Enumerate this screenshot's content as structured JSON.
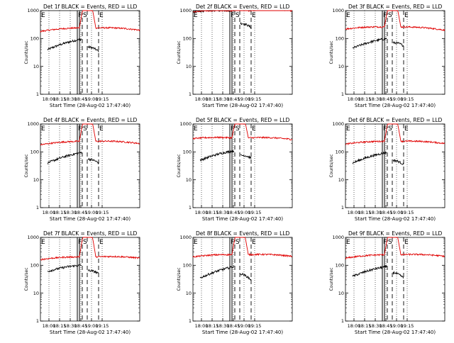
{
  "chart_data": [
    {
      "type": "line",
      "panel_id": 1,
      "title": "Det 1f BLACK = Events, RED = LLD",
      "xlabel": "Start Time (28-Aug-02 17:47:40)",
      "ylabel": "Counts/sec",
      "x_tick_labels": [
        "18:00",
        "18:15",
        "18:30",
        "18:45",
        "19:00",
        "19:15"
      ],
      "y_tick_labels": [
        "1",
        "10",
        "100",
        "1000"
      ],
      "ylim": [
        1,
        1000
      ],
      "scale": "log",
      "markers": [
        "E",
        "F",
        "S",
        "E"
      ],
      "series": [
        {
          "name": "Events",
          "color": "#000000",
          "segments": [
            {
              "start_min": 10,
              "end_min": 58,
              "start_val": 40,
              "end_val": 95,
              "hump": 1.2
            },
            {
              "start_min": 67,
              "end_min": 82,
              "start_val": 50,
              "end_val": 35,
              "hump": 1.0
            }
          ]
        },
        {
          "name": "LLD",
          "color": "#e00000",
          "segments": [
            {
              "start_min": 0,
              "end_min": 55,
              "start_val": 180,
              "end_val": 240,
              "hump": 0.8
            },
            {
              "start_min": 55,
              "end_min": 78,
              "start_val": 240,
              "end_val": 240,
              "rise": true
            },
            {
              "start_min": 78,
              "end_min": 140,
              "start_val": 240,
              "end_val": 200,
              "hump": 1.0
            }
          ]
        }
      ]
    },
    {
      "type": "line",
      "panel_id": 2,
      "title": "Det 2f BLACK = Events, RED = LLD",
      "xlabel": "Start Time (28-Aug-02 17:47:40)",
      "ylabel": "Counts/sec",
      "x_tick_labels": [
        "18:00",
        "18:15",
        "18:30",
        "18:45",
        "19:00",
        "19:15"
      ],
      "y_tick_labels": [
        "1",
        "10",
        "100",
        "1000"
      ],
      "ylim": [
        1,
        1000
      ],
      "scale": "log",
      "markers": [
        "E",
        "F",
        "S",
        "E"
      ],
      "series": [
        {
          "name": "Events",
          "color": "#000000",
          "segments": [
            {
              "start_min": 0,
              "end_min": 58,
              "start_val": 900,
              "end_val": 1000,
              "hump": 1.0
            },
            {
              "start_min": 67,
              "end_min": 82,
              "start_val": 350,
              "end_val": 250,
              "hump": 1.0
            }
          ]
        },
        {
          "name": "LLD",
          "color": "#e00000",
          "segments": [
            {
              "start_min": 0,
              "end_min": 55,
              "start_val": 900,
              "end_val": 1000,
              "hump": 0.8
            },
            {
              "start_min": 55,
              "end_min": 78,
              "start_val": 1000,
              "end_val": 1000,
              "rise": true
            },
            {
              "start_min": 78,
              "end_min": 140,
              "start_val": 1000,
              "end_val": 1000,
              "hump": 1.0
            }
          ]
        }
      ]
    },
    {
      "type": "line",
      "panel_id": 3,
      "title": "Det 3f BLACK = Events, RED = LLD",
      "xlabel": "Start Time (28-Aug-02 17:47:40)",
      "ylabel": "Counts/sec",
      "x_tick_labels": [
        "18:00",
        "18:15",
        "18:30",
        "18:45",
        "19:00",
        "19:15"
      ],
      "y_tick_labels": [
        "1",
        "10",
        "100",
        "1000"
      ],
      "ylim": [
        1,
        1000
      ],
      "scale": "log",
      "markers": [
        "E",
        "F",
        "S",
        "E"
      ],
      "series": [
        {
          "name": "Events",
          "color": "#000000",
          "segments": [
            {
              "start_min": 10,
              "end_min": 58,
              "start_val": 45,
              "end_val": 100,
              "hump": 1.2
            },
            {
              "start_min": 67,
              "end_min": 82,
              "start_val": 70,
              "end_val": 55,
              "hump": 1.0
            }
          ]
        },
        {
          "name": "LLD",
          "color": "#e00000",
          "segments": [
            {
              "start_min": 0,
              "end_min": 55,
              "start_val": 220,
              "end_val": 260,
              "hump": 0.8
            },
            {
              "start_min": 55,
              "end_min": 78,
              "start_val": 260,
              "end_val": 260,
              "rise": true
            },
            {
              "start_min": 78,
              "end_min": 140,
              "start_val": 260,
              "end_val": 200,
              "hump": 1.0
            }
          ]
        }
      ]
    },
    {
      "type": "line",
      "panel_id": 4,
      "title": "Det 4f BLACK = Events, RED = LLD",
      "xlabel": "Start Time (28-Aug-02 17:47:40)",
      "ylabel": "Counts/sec",
      "x_tick_labels": [
        "18:00",
        "18:15",
        "18:30",
        "18:45",
        "19:00",
        "19:15"
      ],
      "y_tick_labels": [
        "1",
        "10",
        "100",
        "1000"
      ],
      "ylim": [
        1,
        1000
      ],
      "scale": "log",
      "markers": [
        "E",
        "F",
        "S",
        "E"
      ],
      "series": [
        {
          "name": "Events",
          "color": "#000000",
          "segments": [
            {
              "start_min": 10,
              "end_min": 58,
              "start_val": 40,
              "end_val": 95,
              "hump": 1.2
            },
            {
              "start_min": 67,
              "end_min": 82,
              "start_val": 55,
              "end_val": 40,
              "hump": 1.0
            }
          ]
        },
        {
          "name": "LLD",
          "color": "#e00000",
          "segments": [
            {
              "start_min": 0,
              "end_min": 55,
              "start_val": 180,
              "end_val": 240,
              "hump": 0.8
            },
            {
              "start_min": 55,
              "end_min": 78,
              "start_val": 240,
              "end_val": 240,
              "rise": true
            },
            {
              "start_min": 78,
              "end_min": 140,
              "start_val": 240,
              "end_val": 200,
              "hump": 1.0
            }
          ]
        }
      ]
    },
    {
      "type": "line",
      "panel_id": 5,
      "title": "Det 5f BLACK = Events, RED = LLD",
      "xlabel": "Start Time (28-Aug-02 17:47:40)",
      "ylabel": "Counts/sec",
      "x_tick_labels": [
        "18:00",
        "18:15",
        "18:30",
        "18:45",
        "19:00",
        "19:15"
      ],
      "y_tick_labels": [
        "1",
        "10",
        "100",
        "1000"
      ],
      "ylim": [
        1,
        1000
      ],
      "scale": "log",
      "markers": [
        "E",
        "F",
        "S",
        "E"
      ],
      "series": [
        {
          "name": "Events",
          "color": "#000000",
          "segments": [
            {
              "start_min": 10,
              "end_min": 58,
              "start_val": 50,
              "end_val": 110,
              "hump": 1.2
            },
            {
              "start_min": 67,
              "end_min": 82,
              "start_val": 75,
              "end_val": 60,
              "hump": 1.0
            }
          ]
        },
        {
          "name": "LLD",
          "color": "#e00000",
          "segments": [
            {
              "start_min": 0,
              "end_min": 55,
              "start_val": 300,
              "end_val": 320,
              "hump": 0.8
            },
            {
              "start_min": 55,
              "end_min": 78,
              "start_val": 320,
              "end_val": 320,
              "rise": true
            },
            {
              "start_min": 78,
              "end_min": 140,
              "start_val": 320,
              "end_val": 280,
              "hump": 1.0
            }
          ]
        }
      ]
    },
    {
      "type": "line",
      "panel_id": 6,
      "title": "Det 6f BLACK = Events, RED = LLD",
      "xlabel": "Start Time (28-Aug-02 17:47:40)",
      "ylabel": "Counts/sec",
      "x_tick_labels": [
        "18:00",
        "18:15",
        "18:30",
        "18:45",
        "19:00",
        "19:15"
      ],
      "y_tick_labels": [
        "1",
        "10",
        "100",
        "1000"
      ],
      "ylim": [
        1,
        1000
      ],
      "scale": "log",
      "markers": [
        "E",
        "F",
        "S",
        "E"
      ],
      "series": [
        {
          "name": "Events",
          "color": "#000000",
          "segments": [
            {
              "start_min": 10,
              "end_min": 58,
              "start_val": 40,
              "end_val": 95,
              "hump": 1.2
            },
            {
              "start_min": 67,
              "end_min": 82,
              "start_val": 50,
              "end_val": 35,
              "hump": 1.0
            }
          ]
        },
        {
          "name": "LLD",
          "color": "#e00000",
          "segments": [
            {
              "start_min": 0,
              "end_min": 55,
              "start_val": 190,
              "end_val": 240,
              "hump": 0.8
            },
            {
              "start_min": 55,
              "end_min": 78,
              "start_val": 240,
              "end_val": 240,
              "rise": true
            },
            {
              "start_min": 78,
              "end_min": 140,
              "start_val": 240,
              "end_val": 200,
              "hump": 1.0
            }
          ]
        }
      ]
    },
    {
      "type": "line",
      "panel_id": 7,
      "title": "Det 7f BLACK = Events, RED = LLD",
      "xlabel": "Start Time (28-Aug-02 17:47:40)",
      "ylabel": "Counts/sec",
      "x_tick_labels": [
        "18:00",
        "18:15",
        "18:30",
        "18:45",
        "19:00",
        "19:15"
      ],
      "y_tick_labels": [
        "1",
        "10",
        "100",
        "1000"
      ],
      "ylim": [
        1,
        1000
      ],
      "scale": "log",
      "markers": [
        "E",
        "F",
        "S",
        "E"
      ],
      "series": [
        {
          "name": "Events",
          "color": "#000000",
          "segments": [
            {
              "start_min": 10,
              "end_min": 58,
              "start_val": 60,
              "end_val": 100,
              "hump": 1.2
            },
            {
              "start_min": 67,
              "end_min": 82,
              "start_val": 65,
              "end_val": 50,
              "hump": 1.0
            }
          ]
        },
        {
          "name": "LLD",
          "color": "#e00000",
          "segments": [
            {
              "start_min": 0,
              "end_min": 55,
              "start_val": 160,
              "end_val": 200,
              "hump": 0.8
            },
            {
              "start_min": 55,
              "end_min": 78,
              "start_val": 200,
              "end_val": 200,
              "rise": true
            },
            {
              "start_min": 78,
              "end_min": 140,
              "start_val": 200,
              "end_val": 180,
              "hump": 1.0
            }
          ]
        }
      ]
    },
    {
      "type": "line",
      "panel_id": 8,
      "title": "Det 8f BLACK = Events, RED = LLD",
      "xlabel": "Start Time (28-Aug-02 17:47:40)",
      "ylabel": "Counts/sec",
      "x_tick_labels": [
        "18:00",
        "18:15",
        "18:30",
        "18:45",
        "19:00",
        "19:15"
      ],
      "y_tick_labels": [
        "1",
        "10",
        "100",
        "1000"
      ],
      "ylim": [
        1,
        1000
      ],
      "scale": "log",
      "markers": [
        "E",
        "F",
        "S",
        "E"
      ],
      "series": [
        {
          "name": "Events",
          "color": "#000000",
          "segments": [
            {
              "start_min": 10,
              "end_min": 58,
              "start_val": 35,
              "end_val": 90,
              "hump": 1.2
            },
            {
              "start_min": 67,
              "end_min": 82,
              "start_val": 50,
              "end_val": 30,
              "hump": 1.0
            }
          ]
        },
        {
          "name": "LLD",
          "color": "#e00000",
          "segments": [
            {
              "start_min": 0,
              "end_min": 55,
              "start_val": 200,
              "end_val": 240,
              "hump": 0.8
            },
            {
              "start_min": 55,
              "end_min": 78,
              "start_val": 240,
              "end_val": 240,
              "rise": true
            },
            {
              "start_min": 78,
              "end_min": 140,
              "start_val": 240,
              "end_val": 210,
              "hump": 1.0
            }
          ]
        }
      ]
    },
    {
      "type": "line",
      "panel_id": 9,
      "title": "Det 9f BLACK = Events, RED = LLD",
      "xlabel": "Start Time (28-Aug-02 17:47:40)",
      "ylabel": "Counts/sec",
      "x_tick_labels": [
        "18:00",
        "18:15",
        "18:30",
        "18:45",
        "19:00",
        "19:15"
      ],
      "y_tick_labels": [
        "1",
        "10",
        "100",
        "1000"
      ],
      "ylim": [
        1,
        1000
      ],
      "scale": "log",
      "markers": [
        "E",
        "F",
        "S",
        "E"
      ],
      "series": [
        {
          "name": "Events",
          "color": "#000000",
          "segments": [
            {
              "start_min": 10,
              "end_min": 58,
              "start_val": 40,
              "end_val": 90,
              "hump": 1.2
            },
            {
              "start_min": 67,
              "end_min": 82,
              "start_val": 55,
              "end_val": 35,
              "hump": 1.0
            }
          ]
        },
        {
          "name": "LLD",
          "color": "#e00000",
          "segments": [
            {
              "start_min": 0,
              "end_min": 55,
              "start_val": 180,
              "end_val": 240,
              "hump": 0.8
            },
            {
              "start_min": 55,
              "end_min": 78,
              "start_val": 240,
              "end_val": 240,
              "rise": true
            },
            {
              "start_min": 78,
              "end_min": 140,
              "start_val": 240,
              "end_val": 210,
              "hump": 1.0
            }
          ]
        }
      ]
    }
  ]
}
